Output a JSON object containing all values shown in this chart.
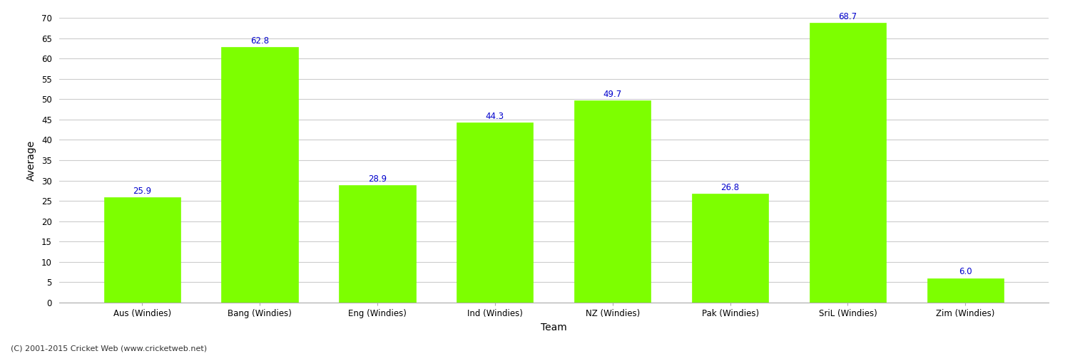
{
  "title": "",
  "categories": [
    "Aus (Windies)",
    "Bang (Windies)",
    "Eng (Windies)",
    "Ind (Windies)",
    "NZ (Windies)",
    "Pak (Windies)",
    "SriL (Windies)",
    "Zim (Windies)"
  ],
  "values": [
    25.9,
    62.8,
    28.9,
    44.3,
    49.7,
    26.8,
    68.7,
    6.0
  ],
  "bar_color": "#7dff00",
  "bar_edge_color": "#7dff00",
  "label_color": "#0000cc",
  "ylabel": "Average",
  "xlabel": "Team",
  "ylim": [
    0,
    70
  ],
  "yticks": [
    0,
    5,
    10,
    15,
    20,
    25,
    30,
    35,
    40,
    45,
    50,
    55,
    60,
    65,
    70
  ],
  "grid_color": "#cccccc",
  "background_color": "#ffffff",
  "footnote": "(C) 2001-2015 Cricket Web (www.cricketweb.net)",
  "label_fontsize": 8.5,
  "axis_label_fontsize": 10,
  "tick_fontsize": 8.5,
  "footnote_fontsize": 8,
  "bar_width": 0.65
}
